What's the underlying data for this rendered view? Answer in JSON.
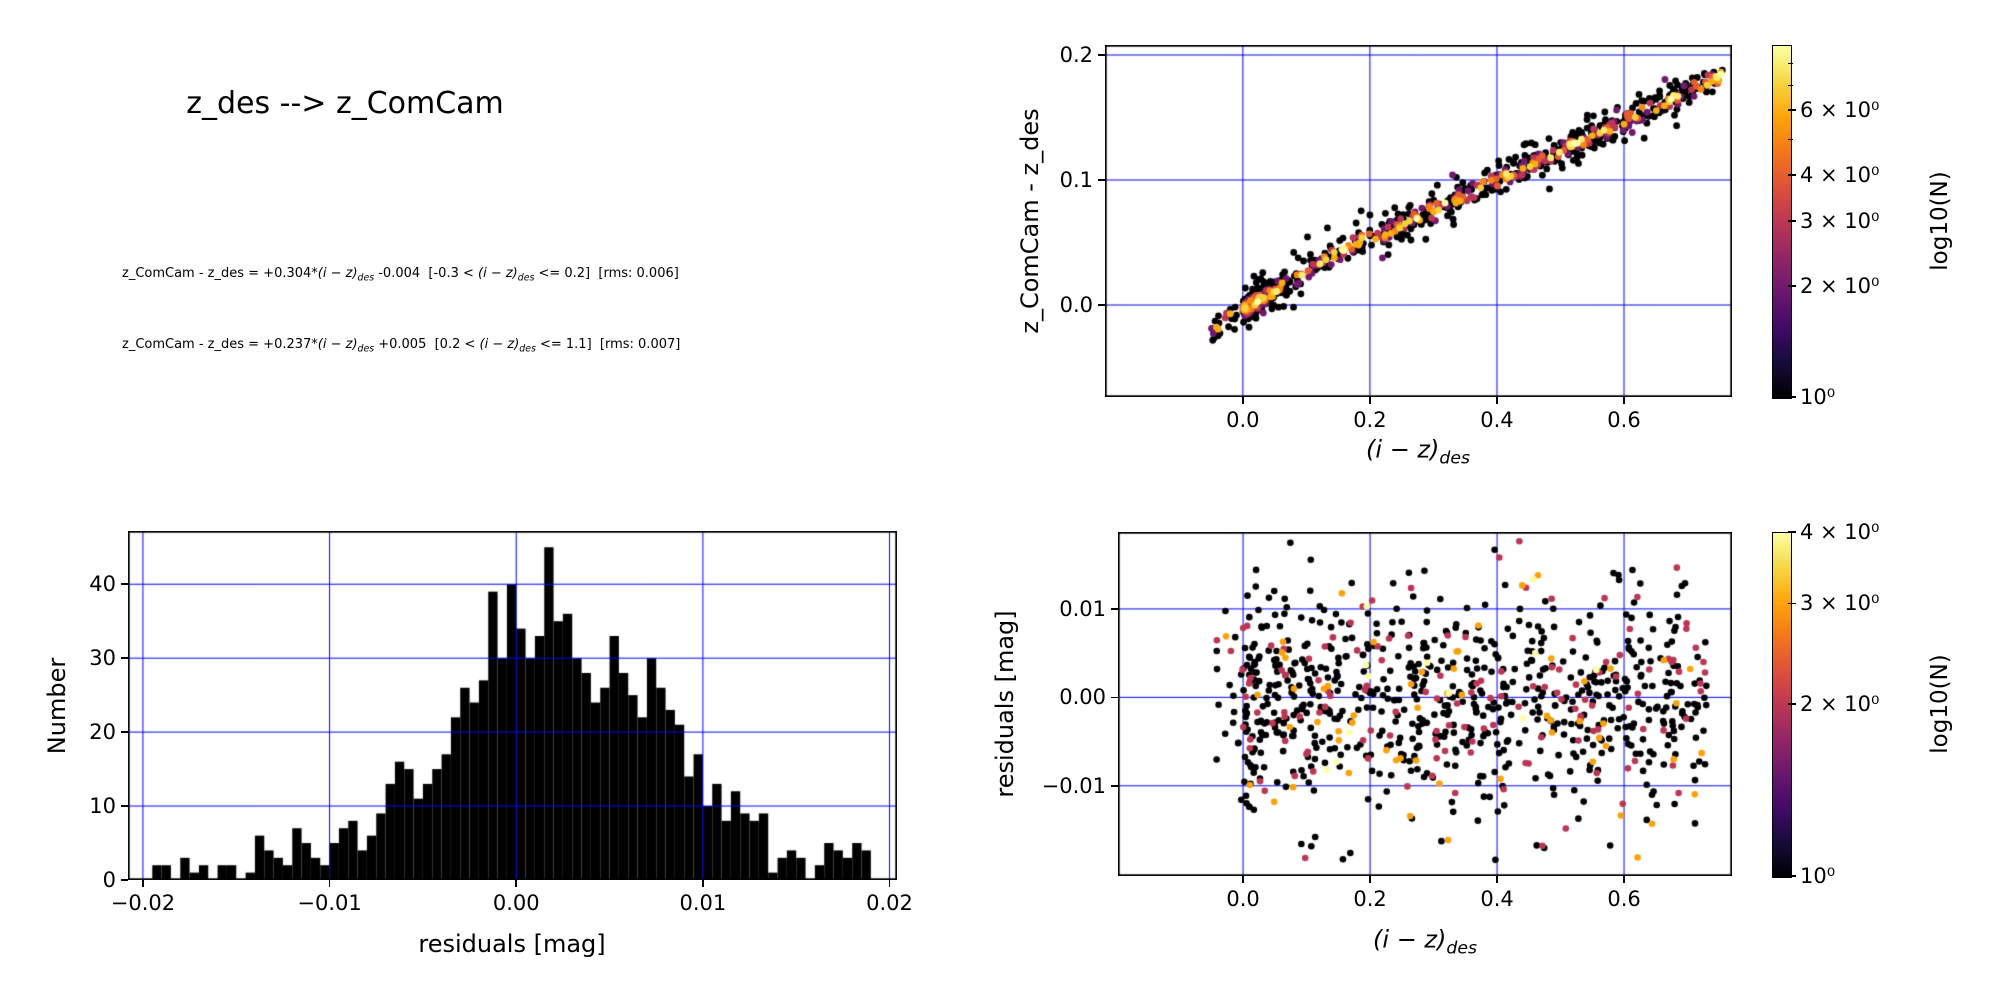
{
  "figure": {
    "background": "#ffffff"
  },
  "colors": {
    "grid": "#0000ff",
    "frame": "#000000",
    "histogram_fill": "#1f77b4",
    "inferno_stops": [
      "#000004",
      "#160b39",
      "#420a68",
      "#6a176e",
      "#932667",
      "#bc3754",
      "#dd513a",
      "#f37819",
      "#fca50a",
      "#f6d746",
      "#fcffa4"
    ]
  },
  "header": {
    "title": "z_des --> z_ComCam",
    "equations": [
      {
        "parts": [
          {
            "text": "z_ComCam - z_des = +0.304*"
          },
          {
            "math": "(i − z)"
          },
          {
            "sub": "des"
          },
          {
            "text": " -0.004  [-0.3 < "
          },
          {
            "math": "(i − z)"
          },
          {
            "sub": "des"
          },
          {
            "text": " <= 0.2]  [rms: 0.006]"
          }
        ]
      },
      {
        "parts": [
          {
            "text": "z_ComCam - z_des = +0.237*"
          },
          {
            "math": "(i − z)"
          },
          {
            "sub": "des"
          },
          {
            "text": " +0.005  [0.2 < "
          },
          {
            "math": "(i − z)"
          },
          {
            "sub": "des"
          },
          {
            "text": " <= 1.1]  [rms: 0.007]"
          }
        ]
      }
    ]
  },
  "chart_data": [
    {
      "name": "color-term-scatter",
      "type": "scatter",
      "xlabel": {
        "main": "(i − z)",
        "sub": "des"
      },
      "ylabel": "z_ComCam - z_des",
      "xlim": [
        -0.217,
        0.77
      ],
      "ylim": [
        -0.0736,
        0.208
      ],
      "xticks": [
        {
          "v": 0.0,
          "label": "0.0"
        },
        {
          "v": 0.2,
          "label": "0.2"
        },
        {
          "v": 0.4,
          "label": "0.4"
        },
        {
          "v": 0.6,
          "label": "0.6"
        }
      ],
      "yticks": [
        {
          "v": 0.0,
          "label": "0.0"
        },
        {
          "v": 0.1,
          "label": "0.1"
        },
        {
          "v": 0.2,
          "label": "0.2"
        }
      ],
      "grid": true,
      "fit_segments": [
        {
          "slope": 0.304,
          "intercept": -0.004,
          "color_range": [
            -0.3,
            0.2
          ],
          "rms": 0.006
        },
        {
          "slope": 0.237,
          "intercept": 0.005,
          "color_range": [
            0.2,
            1.1
          ],
          "rms": 0.007
        }
      ],
      "points": {
        "n": 960,
        "seed": 12345,
        "x_min": -0.05,
        "x_max": 0.775,
        "core_sigma": 0.0045,
        "outlier_sigma": 0.0105,
        "outlier_frac": 0.26,
        "density_colored": true
      },
      "marker_radius": 3.4,
      "colorbar": {
        "label": "log10(N)",
        "scale": "log",
        "vmin": 1,
        "vmax": 9,
        "ticks": [
          {
            "v": 6,
            "label": "6 × 10⁰"
          },
          {
            "v": 4,
            "label": "4 × 10⁰"
          },
          {
            "v": 3,
            "label": "3 × 10⁰"
          },
          {
            "v": 2,
            "label": "2 × 10⁰"
          },
          {
            "v": 1,
            "label": "10⁰"
          }
        ],
        "minor_ticks": [
          5,
          7,
          8
        ]
      }
    },
    {
      "name": "residuals-histogram",
      "type": "bar",
      "xlabel": "residuals [mag]",
      "ylabel": "Number",
      "xlim": [
        -0.0208,
        0.0204
      ],
      "ylim": [
        0,
        47.2
      ],
      "xticks": [
        {
          "v": -0.02,
          "label": "−0.02"
        },
        {
          "v": -0.01,
          "label": "−0.01"
        },
        {
          "v": 0.0,
          "label": "0.00"
        },
        {
          "v": 0.01,
          "label": "0.01"
        },
        {
          "v": 0.02,
          "label": "0.02"
        }
      ],
      "yticks": [
        {
          "v": 0,
          "label": "0"
        },
        {
          "v": 10,
          "label": "10"
        },
        {
          "v": 20,
          "label": "20"
        },
        {
          "v": 30,
          "label": "30"
        },
        {
          "v": 40,
          "label": "40"
        }
      ],
      "grid": true,
      "bin_start": -0.0205,
      "bin_width": 0.0005,
      "counts": [
        0,
        0,
        2,
        2,
        0,
        3,
        1,
        2,
        0,
        2,
        2,
        0,
        1,
        6,
        4,
        3,
        2,
        7,
        5,
        3,
        2,
        5,
        7,
        8,
        4,
        6,
        9,
        13,
        16,
        15,
        11,
        13,
        15,
        17,
        22,
        26,
        24,
        27,
        39,
        30,
        40,
        34,
        30,
        33,
        45,
        35,
        36,
        30,
        28,
        24,
        26,
        33,
        28,
        25,
        22,
        30,
        26,
        23,
        21,
        14,
        17,
        10,
        13,
        8,
        12,
        9,
        8,
        9,
        1,
        3,
        4,
        3,
        0,
        2,
        5,
        4,
        3,
        5,
        4,
        0,
        0,
        0
      ]
    },
    {
      "name": "residuals-vs-color-scatter",
      "type": "scatter",
      "xlabel": {
        "main": "(i − z)",
        "sub": "des"
      },
      "ylabel": "residuals [mag]",
      "xlim": [
        -0.197,
        0.77
      ],
      "ylim": [
        -0.0202,
        0.0187
      ],
      "xticks": [
        {
          "v": 0.0,
          "label": "0.0"
        },
        {
          "v": 0.2,
          "label": "0.2"
        },
        {
          "v": 0.4,
          "label": "0.4"
        },
        {
          "v": 0.6,
          "label": "0.6"
        }
      ],
      "yticks": [
        {
          "v": 0.01,
          "label": "0.01"
        },
        {
          "v": 0.0,
          "label": "0.00"
        },
        {
          "v": -0.01,
          "label": "−0.01"
        }
      ],
      "grid": true,
      "points": {
        "n": 900,
        "seed": 777,
        "x_min": -0.045,
        "x_max": 0.73,
        "sigma": 0.0062,
        "outlier_sigma": 0.0102,
        "outlier_frac": 0.1,
        "density_colored": true
      },
      "marker_radius": 3.3,
      "colorbar": {
        "label": "log10(N)",
        "scale": "log",
        "vmin": 1,
        "vmax": 4,
        "ticks": [
          {
            "v": 4,
            "label": "4 × 10⁰"
          },
          {
            "v": 3,
            "label": "3 × 10⁰"
          },
          {
            "v": 2,
            "label": "2 × 10⁰"
          },
          {
            "v": 1,
            "label": "10⁰"
          }
        ],
        "minor_ticks": []
      }
    }
  ]
}
